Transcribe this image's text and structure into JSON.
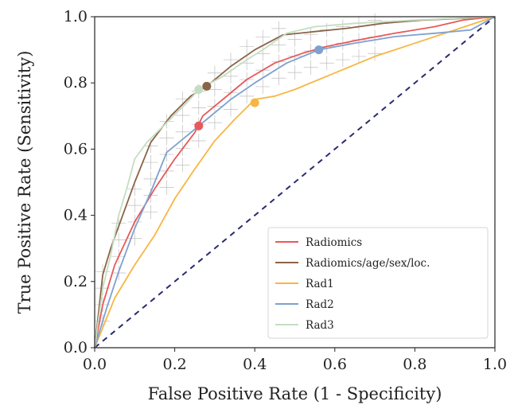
{
  "chart_data": {
    "type": "line",
    "xlabel": "False Positive Rate (1 - Specificity)",
    "ylabel": "True Positive Rate (Sensitivity)",
    "xlim": [
      0.0,
      1.0
    ],
    "ylim": [
      0.0,
      1.0
    ],
    "x_ticks": [
      "0.0",
      "0.2",
      "0.4",
      "0.6",
      "0.8",
      "1.0"
    ],
    "y_ticks": [
      "0.0",
      "0.2",
      "0.4",
      "0.6",
      "0.8",
      "1.0"
    ],
    "legend_position": "bottom-right",
    "grid": false,
    "reference_line": {
      "points": [
        [
          0,
          0
        ],
        [
          1,
          1
        ]
      ],
      "style": "dashed",
      "color": "#2b2b6e"
    },
    "series": [
      {
        "name": "Radiomics",
        "color": "#e8595a",
        "marker": [
          0.26,
          0.67
        ],
        "points": [
          [
            0,
            0
          ],
          [
            0.02,
            0.13
          ],
          [
            0.05,
            0.25
          ],
          [
            0.1,
            0.38
          ],
          [
            0.15,
            0.48
          ],
          [
            0.2,
            0.57
          ],
          [
            0.25,
            0.65
          ],
          [
            0.27,
            0.7
          ],
          [
            0.32,
            0.75
          ],
          [
            0.38,
            0.81
          ],
          [
            0.45,
            0.86
          ],
          [
            0.52,
            0.89
          ],
          [
            0.58,
            0.91
          ],
          [
            0.66,
            0.93
          ],
          [
            0.75,
            0.95
          ],
          [
            0.85,
            0.97
          ],
          [
            0.92,
            0.99
          ],
          [
            1,
            1
          ]
        ]
      },
      {
        "name": "Radiomics/age/sex/loc.",
        "color": "#8a6447",
        "marker": [
          0.28,
          0.79
        ],
        "points": [
          [
            0,
            0
          ],
          [
            0.02,
            0.22
          ],
          [
            0.04,
            0.3
          ],
          [
            0.07,
            0.4
          ],
          [
            0.1,
            0.5
          ],
          [
            0.14,
            0.62
          ],
          [
            0.19,
            0.7
          ],
          [
            0.24,
            0.76
          ],
          [
            0.28,
            0.79
          ],
          [
            0.34,
            0.85
          ],
          [
            0.4,
            0.9
          ],
          [
            0.47,
            0.945
          ],
          [
            0.55,
            0.955
          ],
          [
            0.63,
            0.965
          ],
          [
            0.72,
            0.98
          ],
          [
            0.82,
            0.99
          ],
          [
            0.92,
            0.995
          ],
          [
            1,
            1
          ]
        ]
      },
      {
        "name": "Rad1",
        "color": "#f7b642",
        "marker": [
          0.4,
          0.74
        ],
        "points": [
          [
            0,
            0
          ],
          [
            0.05,
            0.15
          ],
          [
            0.1,
            0.25
          ],
          [
            0.15,
            0.34
          ],
          [
            0.2,
            0.45
          ],
          [
            0.25,
            0.54
          ],
          [
            0.3,
            0.625
          ],
          [
            0.35,
            0.69
          ],
          [
            0.4,
            0.75
          ],
          [
            0.45,
            0.76
          ],
          [
            0.5,
            0.78
          ],
          [
            0.6,
            0.83
          ],
          [
            0.7,
            0.88
          ],
          [
            0.8,
            0.92
          ],
          [
            0.9,
            0.96
          ],
          [
            1,
            1
          ]
        ]
      },
      {
        "name": "Rad2",
        "color": "#7ea1d0",
        "marker": [
          0.56,
          0.9
        ],
        "points": [
          [
            0,
            0
          ],
          [
            0.03,
            0.12
          ],
          [
            0.06,
            0.23
          ],
          [
            0.1,
            0.36
          ],
          [
            0.14,
            0.47
          ],
          [
            0.18,
            0.59
          ],
          [
            0.22,
            0.63
          ],
          [
            0.28,
            0.69
          ],
          [
            0.34,
            0.75
          ],
          [
            0.4,
            0.8
          ],
          [
            0.48,
            0.86
          ],
          [
            0.56,
            0.9
          ],
          [
            0.65,
            0.92
          ],
          [
            0.75,
            0.94
          ],
          [
            0.85,
            0.95
          ],
          [
            0.94,
            0.96
          ],
          [
            1,
            1
          ]
        ]
      },
      {
        "name": "Rad3",
        "color": "#c5ddc2",
        "marker": [
          0.26,
          0.78
        ],
        "points": [
          [
            0,
            0
          ],
          [
            0.02,
            0.18
          ],
          [
            0.04,
            0.28
          ],
          [
            0.06,
            0.4
          ],
          [
            0.08,
            0.48
          ],
          [
            0.1,
            0.57
          ],
          [
            0.13,
            0.62
          ],
          [
            0.18,
            0.68
          ],
          [
            0.23,
            0.74
          ],
          [
            0.26,
            0.78
          ],
          [
            0.32,
            0.82
          ],
          [
            0.38,
            0.87
          ],
          [
            0.42,
            0.9
          ],
          [
            0.48,
            0.95
          ],
          [
            0.55,
            0.97
          ],
          [
            0.65,
            0.98
          ],
          [
            0.8,
            0.99
          ],
          [
            1,
            1
          ]
        ]
      }
    ]
  }
}
